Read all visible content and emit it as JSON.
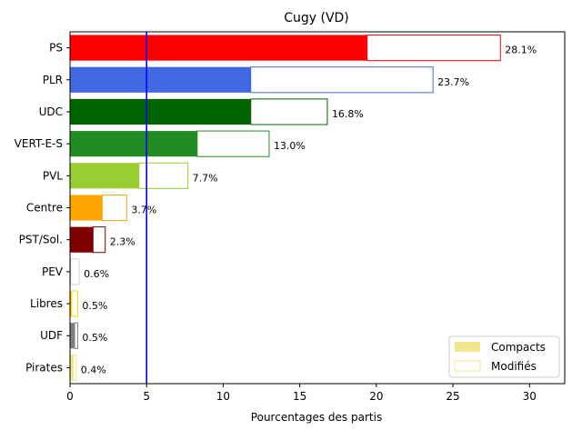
{
  "chart_data": {
    "type": "bar",
    "orientation": "horizontal",
    "stacked": true,
    "title": "Cugy (VD)",
    "xlabel": "Pourcentages des partis",
    "ylabel": "",
    "xlim": [
      0,
      32.3
    ],
    "xticks": [
      "0",
      "5",
      "10",
      "15",
      "20",
      "25",
      "30"
    ],
    "threshold_line": {
      "value": 5,
      "color": "#0000ff"
    },
    "legend": {
      "position": "bottom-right",
      "entries": [
        {
          "label": "Compacts",
          "style": "filled",
          "color": "#f0e68c"
        },
        {
          "label": "Modifiés",
          "style": "outline",
          "color": "#f0e68c"
        }
      ]
    },
    "categories": [
      "PS",
      "PLR",
      "UDC",
      "VERT-E-S",
      "PVL",
      "Centre",
      "PST/Sol.",
      "PEV",
      "Libres",
      "UDF",
      "Pirates"
    ],
    "colors": [
      "#ff0000",
      "#4169e1",
      "#006400",
      "#228b22",
      "#9acd32",
      "#ffa500",
      "#800000",
      "#d3d3d3",
      "#ffd700",
      "#808080",
      "#f0e68c"
    ],
    "series": [
      {
        "name": "Compacts",
        "values": [
          19.4,
          11.8,
          11.8,
          8.3,
          4.5,
          2.1,
          1.5,
          0.05,
          0.1,
          0.3,
          0.2
        ]
      },
      {
        "name": "Modifiés",
        "values": [
          8.7,
          11.9,
          5.0,
          4.7,
          3.2,
          1.6,
          0.8,
          0.55,
          0.4,
          0.2,
          0.2
        ]
      }
    ],
    "data_labels": [
      "28.1%",
      "23.7%",
      "16.8%",
      "13.0%",
      "7.7%",
      "3.7%",
      "2.3%",
      "0.6%",
      "0.5%",
      "0.5%",
      "0.4%"
    ],
    "grid": false
  }
}
